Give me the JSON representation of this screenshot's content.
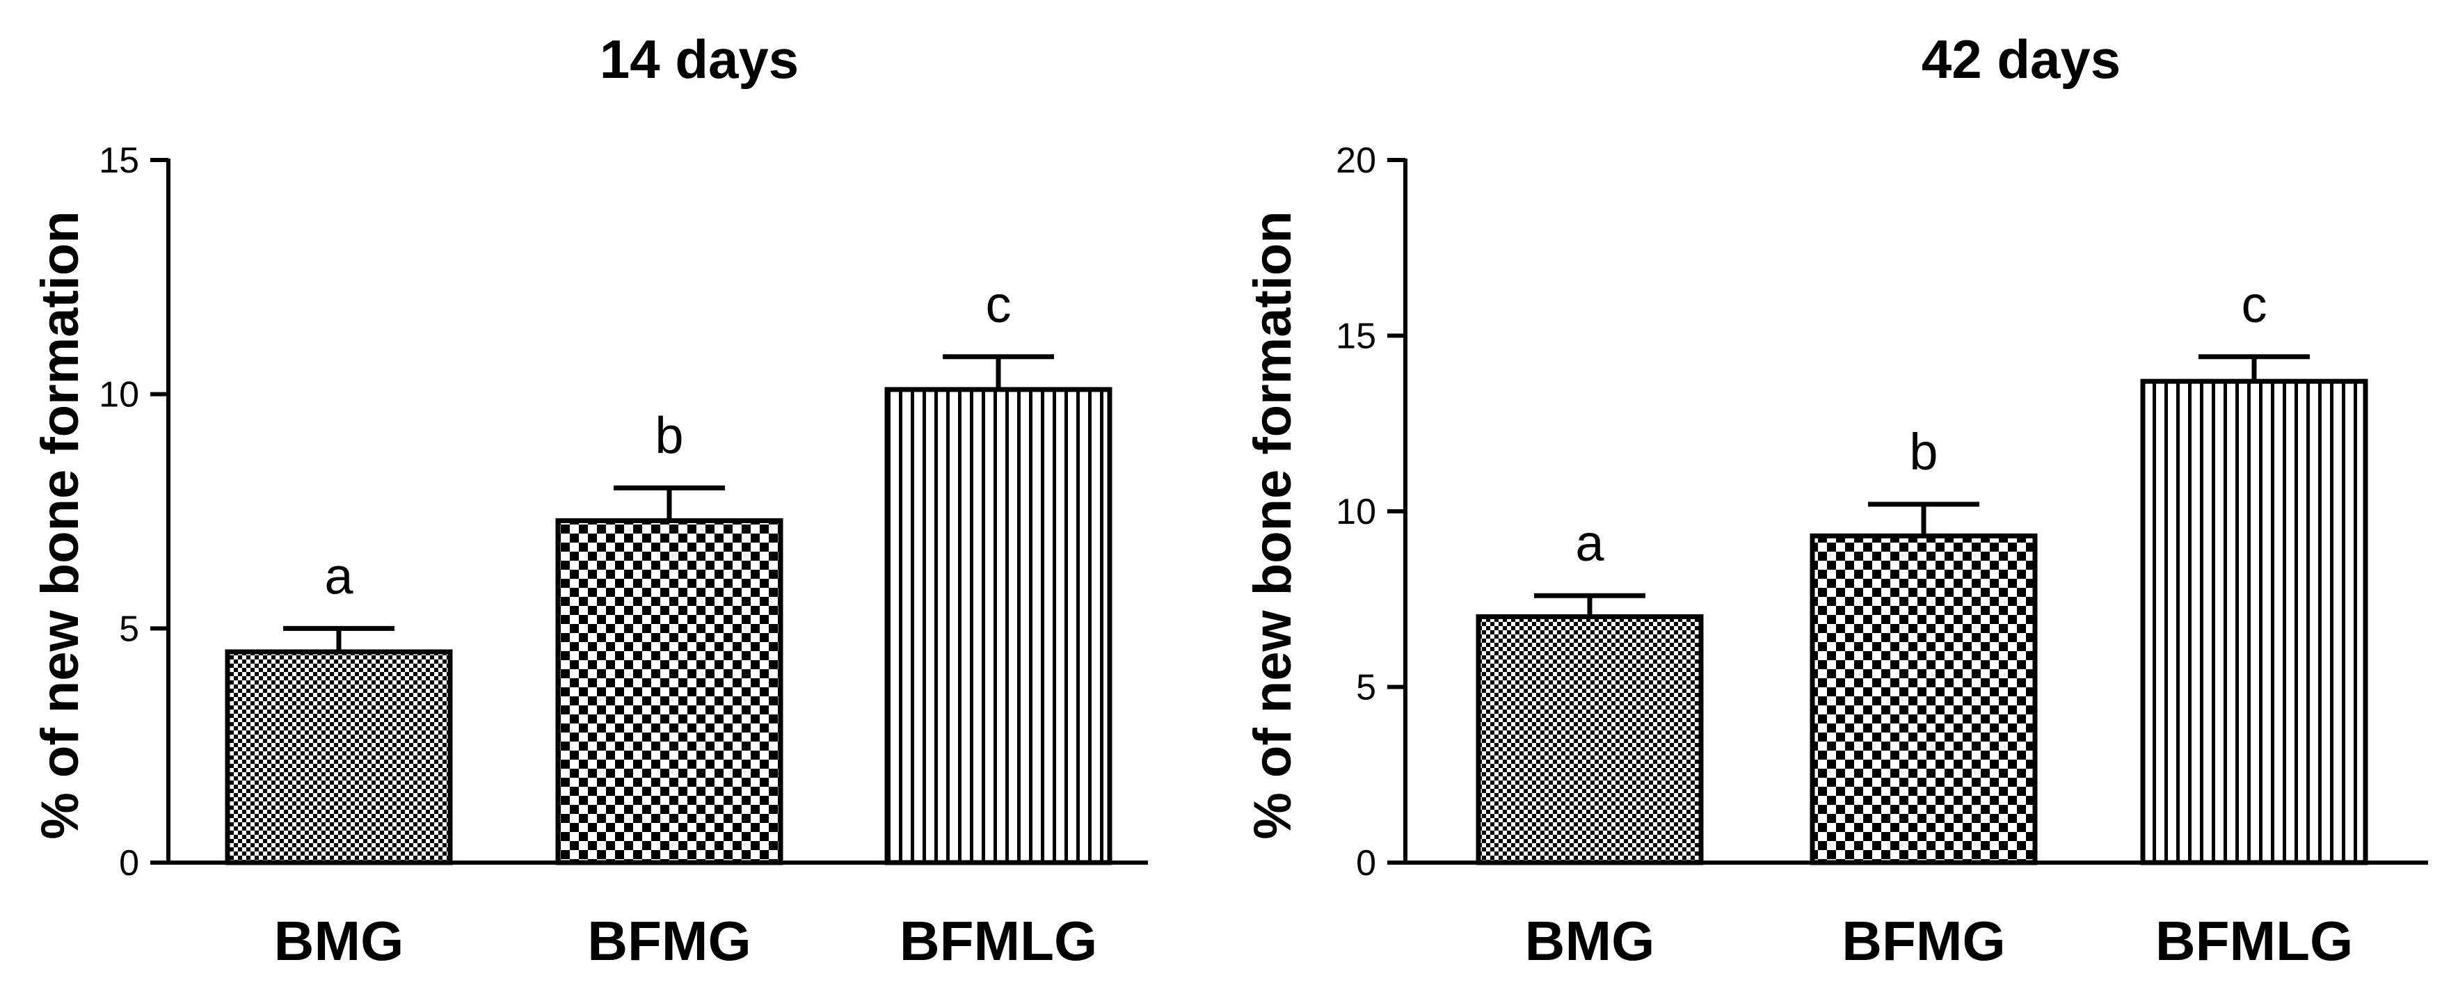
{
  "chart_data": [
    {
      "type": "bar",
      "title": "14 days",
      "ylabel": "% of new bone formation",
      "xlabel": "",
      "categories": [
        "BMG",
        "BFMG",
        "BFMLG"
      ],
      "values": [
        4.5,
        7.3,
        10.1
      ],
      "error": [
        0.5,
        0.7,
        0.7
      ],
      "significance": [
        "a",
        "b",
        "c"
      ],
      "ylim": [
        0,
        15
      ],
      "yticks": [
        0,
        5,
        10,
        15
      ],
      "grid": false,
      "bar_color": "#000000"
    },
    {
      "type": "bar",
      "title": "42 days",
      "ylabel": "% of new bone formation",
      "xlabel": "",
      "categories": [
        "BMG",
        "BFMG",
        "BFMLG"
      ],
      "values": [
        7.0,
        9.3,
        13.7
      ],
      "error": [
        0.6,
        0.9,
        0.7
      ],
      "significance": [
        "a",
        "b",
        "c"
      ],
      "ylim": [
        0,
        20
      ],
      "yticks": [
        0,
        5,
        10,
        15,
        20
      ],
      "grid": false,
      "bar_color": "#000000"
    }
  ]
}
